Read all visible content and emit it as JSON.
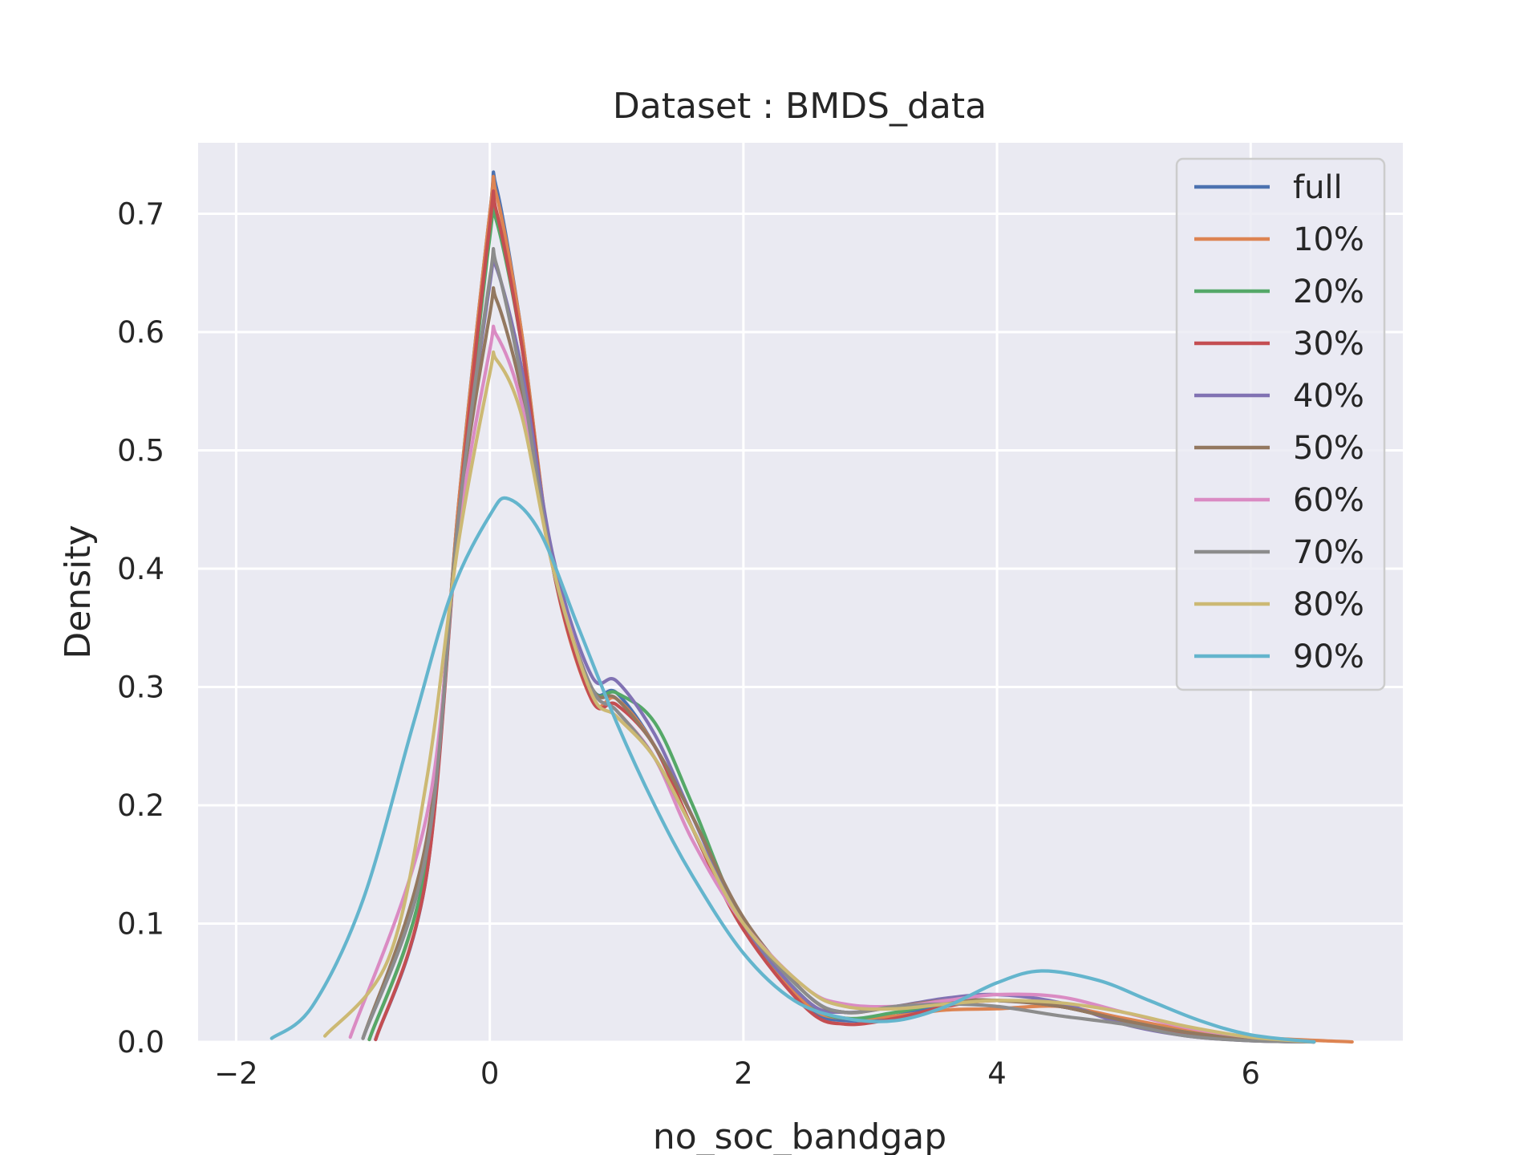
{
  "chart_data": {
    "type": "line",
    "title": "Dataset : BMDS_data",
    "xlabel": "no_soc_bandgap",
    "ylabel": "Density",
    "xlim": [
      -2.3,
      7.2
    ],
    "ylim": [
      0,
      0.76
    ],
    "xticks": [
      -2,
      0,
      2,
      4,
      6
    ],
    "xtick_labels": [
      "−2",
      "0",
      "2",
      "4",
      "6"
    ],
    "yticks": [
      0.0,
      0.1,
      0.2,
      0.3,
      0.4,
      0.5,
      0.6,
      0.7
    ],
    "ytick_labels": [
      "0.0",
      "0.1",
      "0.2",
      "0.3",
      "0.4",
      "0.5",
      "0.6",
      "0.7"
    ],
    "grid": true,
    "legend_position": "top-right",
    "colors": {
      "plot_background": "#eaeaf2",
      "grid": "#ffffff",
      "text": "#262626"
    },
    "series": [
      {
        "name": "full",
        "color": "#4c72b0",
        "x": [
          -0.9,
          -0.5,
          -0.25,
          0.0,
          0.05,
          0.25,
          0.5,
          0.8,
          1.0,
          1.3,
          1.6,
          2.0,
          2.5,
          2.8,
          3.2,
          3.6,
          4.0,
          4.5,
          5.0,
          5.5,
          6.0,
          6.5
        ],
        "y": [
          0.002,
          0.14,
          0.45,
          0.7,
          0.723,
          0.6,
          0.4,
          0.3,
          0.295,
          0.25,
          0.18,
          0.095,
          0.03,
          0.018,
          0.022,
          0.032,
          0.035,
          0.03,
          0.018,
          0.007,
          0.002,
          0.0
        ]
      },
      {
        "name": "10%",
        "color": "#dd8452",
        "x": [
          -0.95,
          -0.5,
          -0.25,
          0.0,
          0.05,
          0.25,
          0.5,
          0.8,
          1.0,
          1.3,
          1.6,
          2.0,
          2.5,
          2.8,
          3.2,
          3.6,
          4.0,
          4.5,
          5.0,
          5.5,
          6.0,
          6.8
        ],
        "y": [
          0.002,
          0.15,
          0.45,
          0.7,
          0.717,
          0.6,
          0.4,
          0.29,
          0.29,
          0.25,
          0.18,
          0.095,
          0.032,
          0.02,
          0.022,
          0.027,
          0.028,
          0.03,
          0.02,
          0.01,
          0.004,
          0.0
        ]
      },
      {
        "name": "20%",
        "color": "#55a868",
        "x": [
          -0.95,
          -0.5,
          -0.25,
          0.0,
          0.05,
          0.25,
          0.5,
          0.8,
          1.0,
          1.3,
          1.6,
          2.0,
          2.5,
          2.8,
          3.2,
          3.6,
          4.0,
          4.5,
          5.0,
          5.5,
          6.0,
          6.5
        ],
        "y": [
          0.002,
          0.15,
          0.44,
          0.68,
          0.695,
          0.59,
          0.4,
          0.3,
          0.295,
          0.27,
          0.2,
          0.1,
          0.035,
          0.02,
          0.025,
          0.033,
          0.035,
          0.03,
          0.018,
          0.008,
          0.002,
          0.0
        ]
      },
      {
        "name": "30%",
        "color": "#c44e52",
        "x": [
          -0.9,
          -0.5,
          -0.25,
          0.0,
          0.05,
          0.25,
          0.5,
          0.8,
          1.0,
          1.3,
          1.6,
          2.0,
          2.5,
          2.8,
          3.2,
          3.6,
          4.0,
          4.5,
          5.0,
          5.5,
          6.0,
          6.5
        ],
        "y": [
          0.002,
          0.14,
          0.44,
          0.69,
          0.703,
          0.59,
          0.4,
          0.29,
          0.285,
          0.25,
          0.18,
          0.095,
          0.028,
          0.015,
          0.02,
          0.03,
          0.035,
          0.03,
          0.018,
          0.007,
          0.002,
          0.0
        ]
      },
      {
        "name": "40%",
        "color": "#8172b3",
        "x": [
          -1.0,
          -0.5,
          -0.25,
          0.0,
          0.05,
          0.25,
          0.5,
          0.8,
          1.0,
          1.3,
          1.6,
          2.0,
          2.5,
          2.8,
          3.2,
          3.6,
          4.0,
          4.5,
          5.0,
          5.5,
          6.0,
          6.5
        ],
        "y": [
          0.003,
          0.16,
          0.44,
          0.64,
          0.655,
          0.57,
          0.41,
          0.31,
          0.305,
          0.26,
          0.19,
          0.1,
          0.035,
          0.025,
          0.03,
          0.037,
          0.04,
          0.033,
          0.015,
          0.005,
          0.001,
          0.0
        ]
      },
      {
        "name": "50%",
        "color": "#937860",
        "x": [
          -1.0,
          -0.5,
          -0.25,
          0.0,
          0.05,
          0.25,
          0.5,
          0.8,
          1.0,
          1.3,
          1.6,
          2.0,
          2.5,
          2.8,
          3.2,
          3.6,
          4.0,
          4.5,
          5.0,
          5.5,
          6.0,
          6.5
        ],
        "y": [
          0.003,
          0.17,
          0.44,
          0.615,
          0.628,
          0.55,
          0.4,
          0.3,
          0.29,
          0.25,
          0.19,
          0.105,
          0.04,
          0.025,
          0.03,
          0.035,
          0.035,
          0.03,
          0.018,
          0.008,
          0.002,
          0.0
        ]
      },
      {
        "name": "60%",
        "color": "#da8bc3",
        "x": [
          -1.1,
          -0.5,
          -0.25,
          0.0,
          0.05,
          0.25,
          0.5,
          0.8,
          1.0,
          1.3,
          1.6,
          2.0,
          2.5,
          2.8,
          3.2,
          3.6,
          4.0,
          4.5,
          5.0,
          5.5,
          6.0,
          6.5
        ],
        "y": [
          0.004,
          0.19,
          0.43,
          0.585,
          0.598,
          0.54,
          0.4,
          0.3,
          0.28,
          0.24,
          0.17,
          0.1,
          0.045,
          0.032,
          0.03,
          0.035,
          0.04,
          0.038,
          0.025,
          0.012,
          0.004,
          0.0
        ]
      },
      {
        "name": "70%",
        "color": "#8c8c8c",
        "x": [
          -1.0,
          -0.5,
          -0.25,
          0.0,
          0.05,
          0.25,
          0.5,
          0.8,
          1.0,
          1.3,
          1.6,
          2.0,
          2.5,
          2.8,
          3.2,
          3.6,
          4.0,
          4.5,
          5.0,
          5.5,
          6.0,
          6.5
        ],
        "y": [
          0.003,
          0.16,
          0.44,
          0.645,
          0.658,
          0.56,
          0.4,
          0.3,
          0.28,
          0.24,
          0.18,
          0.1,
          0.04,
          0.025,
          0.03,
          0.032,
          0.03,
          0.022,
          0.015,
          0.005,
          0.001,
          0.0
        ]
      },
      {
        "name": "80%",
        "color": "#ccb974",
        "x": [
          -1.3,
          -0.8,
          -0.5,
          -0.25,
          0.0,
          0.05,
          0.25,
          0.5,
          0.8,
          1.0,
          1.3,
          1.6,
          2.0,
          2.5,
          2.8,
          3.2,
          3.6,
          4.0,
          4.5,
          5.0,
          5.5,
          6.0,
          6.5
        ],
        "y": [
          0.005,
          0.07,
          0.22,
          0.42,
          0.565,
          0.577,
          0.53,
          0.4,
          0.295,
          0.275,
          0.24,
          0.18,
          0.1,
          0.045,
          0.03,
          0.028,
          0.032,
          0.035,
          0.033,
          0.025,
          0.013,
          0.004,
          0.0
        ]
      },
      {
        "name": "90%",
        "color": "#64b5cd",
        "x": [
          -1.72,
          -1.4,
          -1.0,
          -0.6,
          -0.3,
          0.0,
          0.15,
          0.4,
          0.7,
          1.0,
          1.3,
          1.6,
          2.0,
          2.4,
          2.8,
          3.2,
          3.6,
          4.0,
          4.35,
          4.8,
          5.2,
          5.6,
          6.0,
          6.5
        ],
        "y": [
          0.003,
          0.03,
          0.12,
          0.27,
          0.38,
          0.445,
          0.459,
          0.43,
          0.35,
          0.27,
          0.2,
          0.14,
          0.075,
          0.035,
          0.02,
          0.018,
          0.03,
          0.05,
          0.06,
          0.052,
          0.035,
          0.018,
          0.006,
          0.0
        ]
      }
    ]
  }
}
